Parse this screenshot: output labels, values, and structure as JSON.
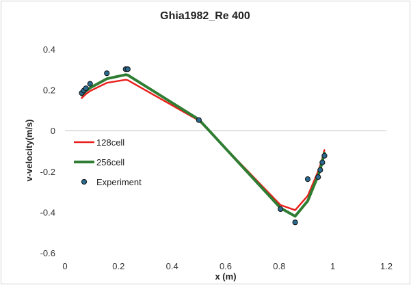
{
  "chart_data": {
    "type": "line",
    "title": "Ghia1982_Re 400",
    "xlabel": "x (m)",
    "ylabel": "v-velocity(m/s)",
    "xlim": [
      0,
      1.2
    ],
    "ylim": [
      -0.6,
      0.4
    ],
    "xticks": [
      "0",
      "0.2",
      "0.4",
      "0.6",
      "0.8",
      "1",
      "1.2"
    ],
    "yticks": [
      "0.4",
      "0.2",
      "0",
      "-0.2",
      "-0.4",
      "-0.6"
    ],
    "grid": false,
    "legend_position": "left",
    "series": [
      {
        "name": "128cell",
        "style": "line",
        "color": "#e8201c",
        "x": [
          0.0625,
          0.0781,
          0.0938,
          0.1563,
          0.2266,
          0.2344,
          0.5,
          0.8047,
          0.8594,
          0.9063,
          0.9453,
          0.9531,
          0.9609,
          0.9688
        ],
        "y": [
          0.16,
          0.18,
          0.195,
          0.235,
          0.25,
          0.248,
          0.05,
          -0.365,
          -0.39,
          -0.32,
          -0.2,
          -0.17,
          -0.135,
          -0.095
        ]
      },
      {
        "name": "256cell",
        "style": "line",
        "color": "#2e7d32",
        "x": [
          0.0625,
          0.0781,
          0.0938,
          0.1563,
          0.2266,
          0.2344,
          0.5,
          0.8047,
          0.8594,
          0.9063,
          0.9453,
          0.9531,
          0.9609,
          0.9688
        ],
        "y": [
          0.175,
          0.195,
          0.21,
          0.255,
          0.275,
          0.273,
          0.055,
          -0.38,
          -0.42,
          -0.345,
          -0.22,
          -0.19,
          -0.15,
          -0.11
        ]
      },
      {
        "name": "Experiment",
        "style": "scatter",
        "color": "#2b6a8f",
        "x": [
          0.0625,
          0.0703,
          0.0781,
          0.0938,
          0.1563,
          0.2266,
          0.2344,
          0.5,
          0.8047,
          0.8594,
          0.9063,
          0.9453,
          0.9531,
          0.9609,
          0.9688
        ],
        "y": [
          0.185,
          0.197,
          0.208,
          0.23,
          0.282,
          0.302,
          0.302,
          0.052,
          -0.385,
          -0.45,
          -0.238,
          -0.228,
          -0.193,
          -0.156,
          -0.123
        ]
      }
    ]
  }
}
